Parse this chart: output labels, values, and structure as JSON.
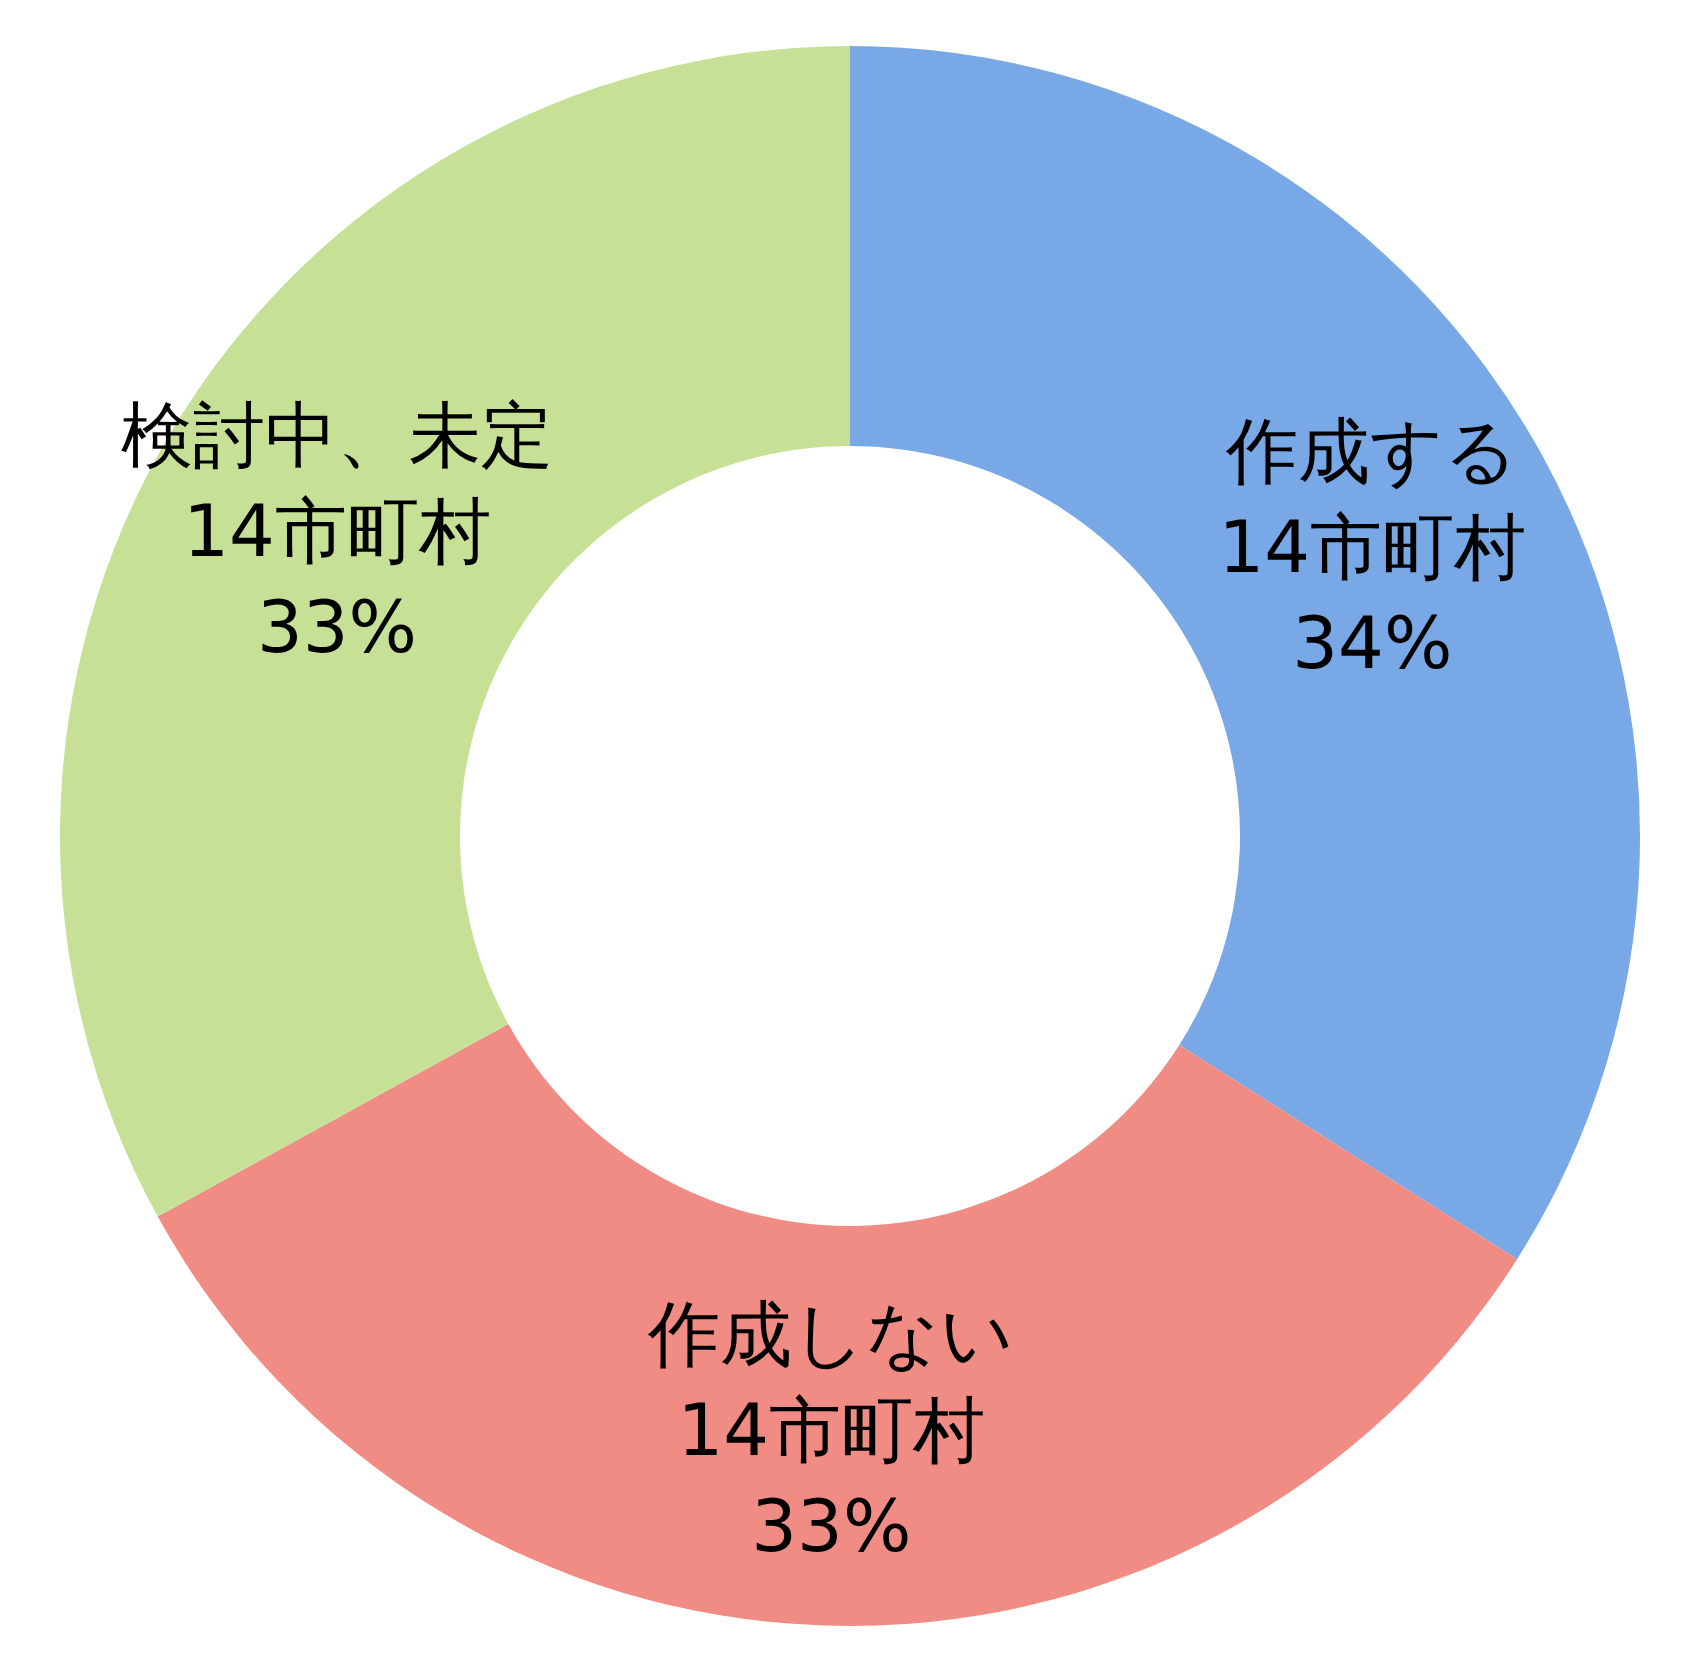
{
  "chart_data": {
    "type": "donut",
    "categories": [
      "作成する",
      "作成しない",
      "検討中、未定"
    ],
    "values": [
      34,
      33,
      33
    ],
    "colors": [
      "#78a9e6",
      "#f08c84",
      "#c6e196"
    ],
    "value_labels": [
      "14市町村\n34%",
      "14市町村\n33%",
      "14市町村\n33%"
    ],
    "legend": false
  }
}
